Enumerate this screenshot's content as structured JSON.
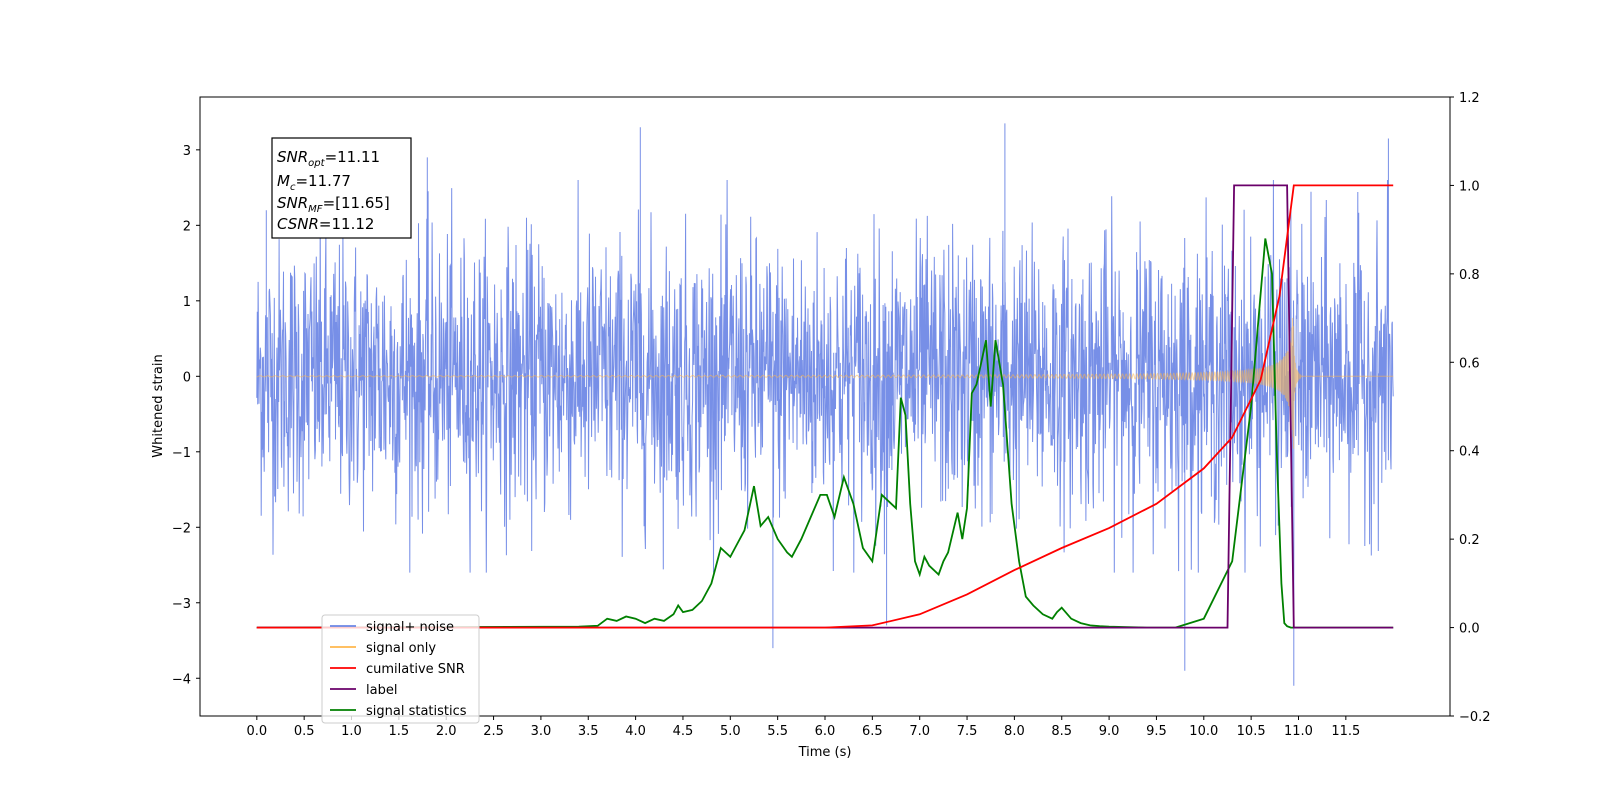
{
  "chart_data": {
    "type": "line",
    "xlabel": "Time (s)",
    "ylabel": "Whitened strain",
    "xlim": [
      -0.6,
      12.6
    ],
    "ylim": [
      -4.5,
      3.7
    ],
    "y2lim": [
      -0.2,
      1.2
    ],
    "x_ticks": [
      0.0,
      0.5,
      1.0,
      1.5,
      2.0,
      2.5,
      3.0,
      3.5,
      4.0,
      4.5,
      5.0,
      5.5,
      6.0,
      6.5,
      7.0,
      7.5,
      8.0,
      8.5,
      9.0,
      9.5,
      10.0,
      10.5,
      11.0,
      11.5
    ],
    "x_tick_labels": [
      "0.0",
      "0.5",
      "1.0",
      "1.5",
      "2.0",
      "2.5",
      "3.0",
      "3.5",
      "4.0",
      "4.5",
      "5.0",
      "5.5",
      "6.0",
      "6.5",
      "7.0",
      "7.5",
      "8.0",
      "8.5",
      "9.0",
      "9.5",
      "10.0",
      "10.5",
      "11.0",
      "11.5"
    ],
    "y_ticks": [
      -4,
      -3,
      -2,
      -1,
      0,
      1,
      2,
      3
    ],
    "y_tick_labels": [
      "−4",
      "−3",
      "−2",
      "−1",
      "0",
      "1",
      "2",
      "3"
    ],
    "y2_ticks": [
      -0.2,
      0.0,
      0.2,
      0.4,
      0.6,
      0.8,
      1.0,
      1.2
    ],
    "y2_tick_labels": [
      "−0.2",
      "0.0",
      "0.2",
      "0.4",
      "0.6",
      "0.8",
      "1.0",
      "1.2"
    ],
    "series": [
      {
        "name": "signal+ noise",
        "axis": "left",
        "color": "#6b86e5",
        "style": "dense noise band",
        "x_range": [
          0.0,
          12.0
        ],
        "envelope_typical": [
          -1.7,
          1.7
        ],
        "peaks_x": [
          0.1,
          1.8,
          4.05,
          5.45,
          6.65,
          7.9,
          9.8,
          10.95,
          11.95
        ],
        "peaks_y": [
          2.2,
          2.9,
          3.3,
          -3.6,
          -3.3,
          3.35,
          -3.9,
          -4.1,
          3.15
        ]
      },
      {
        "name": "signal only",
        "axis": "left",
        "color": "#ffb74d",
        "style": "chirp",
        "x_range": [
          0.0,
          12.0
        ],
        "chirp_end_x": 10.95,
        "max_amplitude": 1.55
      },
      {
        "name": "cumilative SNR",
        "axis": "right",
        "color": "#ff0000",
        "x": [
          0.0,
          6.0,
          6.5,
          7.0,
          7.5,
          8.0,
          8.5,
          9.0,
          9.5,
          10.0,
          10.3,
          10.6,
          10.8,
          10.95,
          12.0
        ],
        "y": [
          0.0,
          0.0,
          0.005,
          0.03,
          0.075,
          0.13,
          0.18,
          0.225,
          0.28,
          0.36,
          0.43,
          0.56,
          0.75,
          1.0,
          1.0
        ]
      },
      {
        "name": "label",
        "axis": "right",
        "color": "#6a006a",
        "x": [
          0.0,
          10.25,
          10.32,
          10.88,
          10.95,
          12.0
        ],
        "y": [
          0.0,
          0.0,
          1.0,
          1.0,
          0.0,
          0.0
        ]
      },
      {
        "name": "signal statistics",
        "axis": "right",
        "color": "#008000",
        "x": [
          0.0,
          3.4,
          3.6,
          3.7,
          3.8,
          3.9,
          4.0,
          4.1,
          4.2,
          4.3,
          4.4,
          4.45,
          4.5,
          4.6,
          4.7,
          4.8,
          4.9,
          5.0,
          5.05,
          5.15,
          5.25,
          5.32,
          5.4,
          5.5,
          5.6,
          5.65,
          5.75,
          5.85,
          5.95,
          6.02,
          6.1,
          6.2,
          6.3,
          6.4,
          6.5,
          6.6,
          6.7,
          6.75,
          6.8,
          6.85,
          6.9,
          6.95,
          7.0,
          7.05,
          7.1,
          7.2,
          7.25,
          7.3,
          7.4,
          7.45,
          7.5,
          7.55,
          7.6,
          7.65,
          7.7,
          7.75,
          7.8,
          7.88,
          7.93,
          7.97,
          8.05,
          8.12,
          8.2,
          8.3,
          8.4,
          8.45,
          8.5,
          8.6,
          8.7,
          8.8,
          8.9,
          9.0,
          9.2,
          9.4,
          9.5,
          9.7,
          10.0,
          10.3,
          10.5,
          10.65,
          10.72,
          10.77,
          10.82,
          10.85,
          10.88,
          10.92,
          10.95,
          11.0,
          11.05,
          12.0
        ],
        "y": [
          0.0,
          0.002,
          0.004,
          0.02,
          0.015,
          0.025,
          0.02,
          0.01,
          0.02,
          0.015,
          0.03,
          0.05,
          0.035,
          0.04,
          0.06,
          0.1,
          0.18,
          0.16,
          0.18,
          0.22,
          0.32,
          0.23,
          0.25,
          0.2,
          0.17,
          0.16,
          0.2,
          0.25,
          0.3,
          0.3,
          0.25,
          0.34,
          0.28,
          0.18,
          0.15,
          0.3,
          0.28,
          0.27,
          0.52,
          0.48,
          0.28,
          0.15,
          0.12,
          0.16,
          0.14,
          0.12,
          0.15,
          0.17,
          0.26,
          0.2,
          0.27,
          0.53,
          0.55,
          0.6,
          0.65,
          0.5,
          0.65,
          0.55,
          0.4,
          0.28,
          0.15,
          0.07,
          0.05,
          0.03,
          0.02,
          0.035,
          0.045,
          0.02,
          0.01,
          0.005,
          0.003,
          0.002,
          0.001,
          0.0,
          0.0,
          0.0,
          0.02,
          0.15,
          0.5,
          0.88,
          0.8,
          0.4,
          0.1,
          0.01,
          0.003,
          0.0,
          0.0,
          0.0,
          0.0,
          0.0
        ]
      }
    ],
    "legend": {
      "position": "lower-left",
      "entries": [
        {
          "label": "signal+ noise",
          "color": "#6b86e5"
        },
        {
          "label": "signal only",
          "color": "#ffb74d"
        },
        {
          "label": "cumilative SNR",
          "color": "#ff0000"
        },
        {
          "label": "label",
          "color": "#6a006a"
        },
        {
          "label": "signal statistics",
          "color": "#008000"
        }
      ]
    },
    "annotation": {
      "snr_opt": {
        "var": "SNR",
        "sub": "opt",
        "value": "=11.11"
      },
      "mc": {
        "var": "M",
        "sub": "c",
        "value": "=11.77"
      },
      "snr_mf": {
        "var": "SNR",
        "sub": "MF",
        "value": "=[11.65]"
      },
      "csnr": {
        "var": "CSNR",
        "sub": "",
        "value": "=11.12"
      }
    }
  }
}
